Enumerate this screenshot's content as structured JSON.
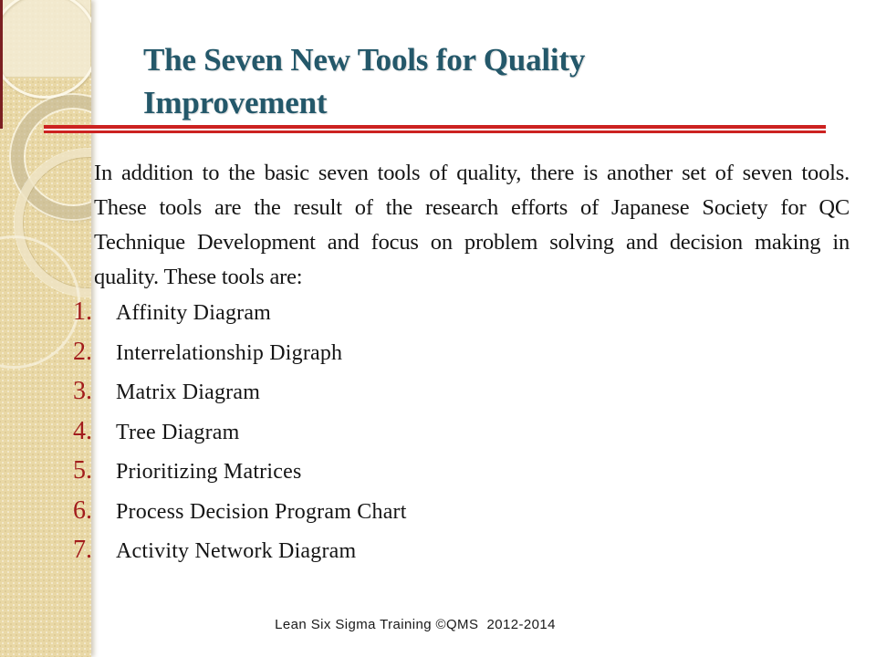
{
  "slide": {
    "title": "The Seven New Tools for Quality Improvement",
    "body_paragraph": "In addition to the basic seven tools of quality, there is another set of seven tools. These tools are the result of the research efforts of Japanese Society for QC Technique Development and focus on problem solving and decision making in quality. These tools are:",
    "tools_list": [
      {
        "number": "1.",
        "label": "Affinity Diagram"
      },
      {
        "number": "2.",
        "label": "Interrelationship Digraph"
      },
      {
        "number": "3.",
        "label": "Matrix Diagram"
      },
      {
        "number": "4.",
        "label": "Tree Diagram"
      },
      {
        "number": "5.",
        "label": "Prioritizing Matrices"
      },
      {
        "number": "6.",
        "label": "Process Decision Program Chart"
      },
      {
        "number": "7.",
        "label": "Activity Network Diagram"
      }
    ],
    "footer": "Lean Six Sigma Training ©QMS  2012-2014"
  },
  "colors": {
    "sidebar_beige": "#e9d8a6",
    "sidebar_top_rect": "#f4edd5",
    "accent_dark_red": "#7c2022",
    "title_teal": "#24586a",
    "rule_red": "#cc2220",
    "number_red": "#a21c1c",
    "body_text": "#151515",
    "footer_text": "#1a1a1a",
    "background": "#ffffff"
  }
}
